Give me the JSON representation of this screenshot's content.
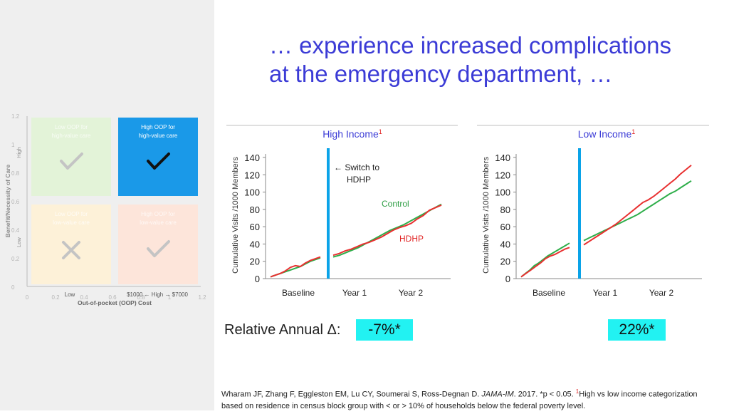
{
  "title": {
    "line1": "… experience increased complications",
    "line2": "at the emergency department, …"
  },
  "quadrant_figure": {
    "y_label": "Benefit/Necessity of Care",
    "y_high": "High",
    "y_low": "Low",
    "x_label": "Out-of-pocket (OOP) Cost",
    "x_low": "Low",
    "x_high": "$1000 ← High → $7000",
    "y_ticks": [
      "0",
      "0.2",
      "0.4",
      "0.6",
      "0.8",
      "1",
      "1.2"
    ],
    "x_ticks": [
      "0",
      "0.2",
      "0.4",
      "0.6",
      "0.8",
      "1",
      "1.2"
    ],
    "quadrants": [
      {
        "text": "Low OOP for high-value care",
        "color": "#e3f3d8",
        "mark": "check",
        "faded": true
      },
      {
        "text": "High OOP for high-value care",
        "color": "#1a99e8",
        "mark": "check",
        "faded": false
      },
      {
        "text": "Low OOP for low-value care",
        "color": "#fdf1d8",
        "mark": "cross",
        "faded": true
      },
      {
        "text": "High OOP for low-value care",
        "color": "#fde5da",
        "mark": "check",
        "faded": true
      }
    ]
  },
  "chart_data": [
    {
      "type": "line",
      "title": "High Income",
      "title_superscript": "1",
      "ylabel": "Cumulative Visits /1000 Members",
      "ylim": [
        0,
        150
      ],
      "yticks": [
        0,
        20,
        40,
        60,
        80,
        100,
        120,
        140
      ],
      "period_labels": [
        "Baseline",
        "Year 1",
        "Year 2"
      ],
      "annotations": [
        {
          "text": "← Switch to HDHP"
        },
        {
          "text": "Control",
          "color": "#2e9e44"
        },
        {
          "text": "HDHP",
          "color": "#e02424"
        }
      ],
      "series": [
        {
          "name": "Control",
          "color": "#2eae4a",
          "segments": [
            [
              2,
              4,
              6,
              8,
              10,
              12,
              14,
              17,
              20,
              22,
              24
            ],
            [
              25,
              27,
              30,
              33,
              36,
              40,
              44,
              48,
              52,
              56,
              59,
              62,
              66,
              70,
              74,
              78,
              82,
              86
            ]
          ]
        },
        {
          "name": "HDHP",
          "color": "#e83030",
          "segments": [
            [
              2,
              4,
              6,
              9,
              13,
              15,
              14,
              18,
              21,
              23,
              25
            ],
            [
              27,
              29,
              32,
              34,
              37,
              40,
              42,
              45,
              48,
              52,
              56,
              59,
              61,
              64,
              69,
              73,
              79,
              82,
              85
            ]
          ]
        }
      ]
    },
    {
      "type": "line",
      "title": "Low Income",
      "title_superscript": "1",
      "ylabel": "Cumulative Visits /1000 Members",
      "ylim": [
        0,
        150
      ],
      "yticks": [
        0,
        20,
        40,
        60,
        80,
        100,
        120,
        140
      ],
      "period_labels": [
        "Baseline",
        "Year 1",
        "Year 2"
      ],
      "series": [
        {
          "name": "Control",
          "color": "#2eae4a",
          "segments": [
            [
              2,
              6,
              10,
              15,
              18,
              22,
              26,
              29,
              32,
              35,
              38,
              41
            ],
            [
              44,
              47,
              50,
              53,
              56,
              59,
              62,
              65,
              68,
              71,
              74,
              78,
              82,
              86,
              90,
              94,
              98,
              101,
              105,
              109,
              113
            ]
          ]
        },
        {
          "name": "HDHP",
          "color": "#e83030",
          "segments": [
            [
              2,
              6,
              10,
              14,
              18,
              23,
              26,
              28,
              31,
              34,
              36
            ],
            [
              39,
              43,
              47,
              51,
              55,
              59,
              63,
              68,
              73,
              78,
              83,
              88,
              91,
              95,
              100,
              105,
              110,
              115,
              121,
              126,
              131
            ]
          ]
        }
      ]
    }
  ],
  "relative_label": "Relative Annual Δ:",
  "deltas": {
    "high": "-7%*",
    "low": "22%*"
  },
  "footnote": {
    "authors": "Wharam JF, Zhang F, Eggleston EM, Lu CY, Soumerai S, Ross-Degnan D. ",
    "journal": "JAMA-IM",
    "rest1": ". 2017. *p < 0.05. ",
    "sup": "1",
    "rest2": "High vs low income categorization based on residence in census block group with < or > 10% of households below the federal poverty level."
  }
}
